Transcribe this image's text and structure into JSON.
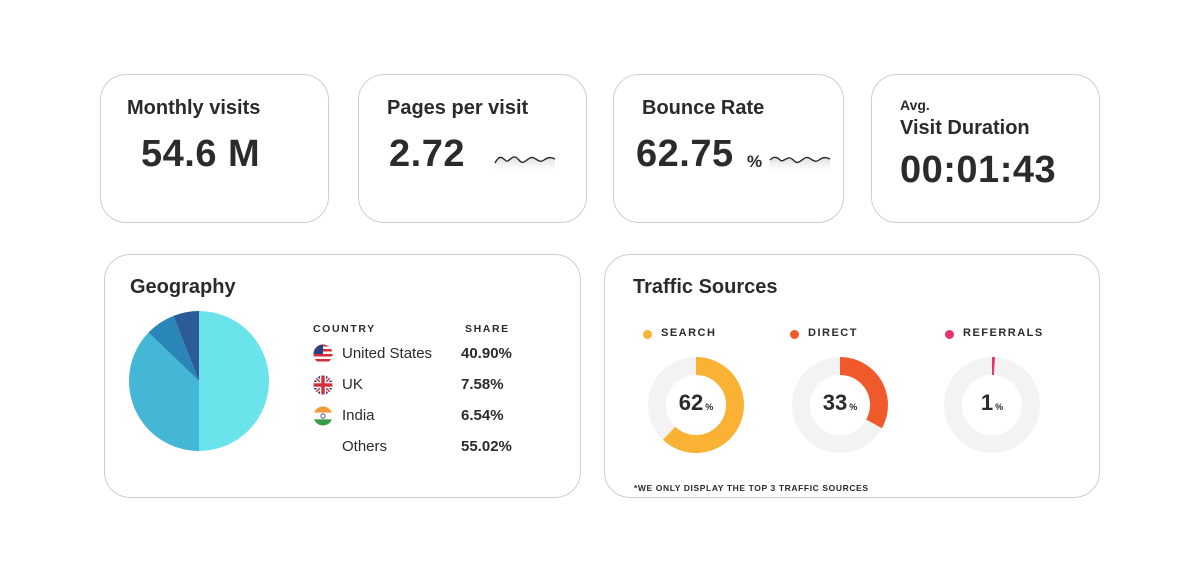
{
  "metrics": {
    "monthly_visits": {
      "label": "Monthly visits",
      "value": "54.6 M"
    },
    "pages_per_visit": {
      "label": "Pages per visit",
      "value": "2.72"
    },
    "bounce_rate": {
      "label": "Bounce Rate",
      "value": "62.75",
      "unit": "%"
    },
    "visit_duration": {
      "label_small": "Avg.",
      "label": "Visit Duration",
      "value": "00:01:43"
    }
  },
  "geography": {
    "title": "Geography",
    "col_country": "COUNTRY",
    "col_share": "SHARE",
    "rows": [
      {
        "country": "United States",
        "share": "40.90%",
        "flag": "us-flag-icon"
      },
      {
        "country": "UK",
        "share": "7.58%",
        "flag": "uk-flag-icon"
      },
      {
        "country": "India",
        "share": "6.54%",
        "flag": "india-flag-icon"
      },
      {
        "country": "Others",
        "share": "55.02%",
        "flag": ""
      }
    ]
  },
  "traffic": {
    "title": "Traffic Sources",
    "footnote": "*WE ONLY DISPLAY THE TOP 3 TRAFFIC SOURCES",
    "sources": [
      {
        "label": "SEARCH",
        "value": "62",
        "unit": "%",
        "color": "#f9b233"
      },
      {
        "label": "DIRECT",
        "value": "33",
        "unit": "%",
        "color": "#f05a2a"
      },
      {
        "label": "REFERRALS",
        "value": "1",
        "unit": "%",
        "color": "#e6336b"
      }
    ]
  },
  "chart_data": {
    "type": "pie",
    "title": "",
    "categories": [
      "United States",
      "UK",
      "India",
      "Others"
    ],
    "values": [
      40.9,
      7.58,
      6.54,
      55.02
    ],
    "colors": [
      "#45b7d6",
      "#2a86b8",
      "#2d5b98",
      "#6ae3ea"
    ]
  }
}
